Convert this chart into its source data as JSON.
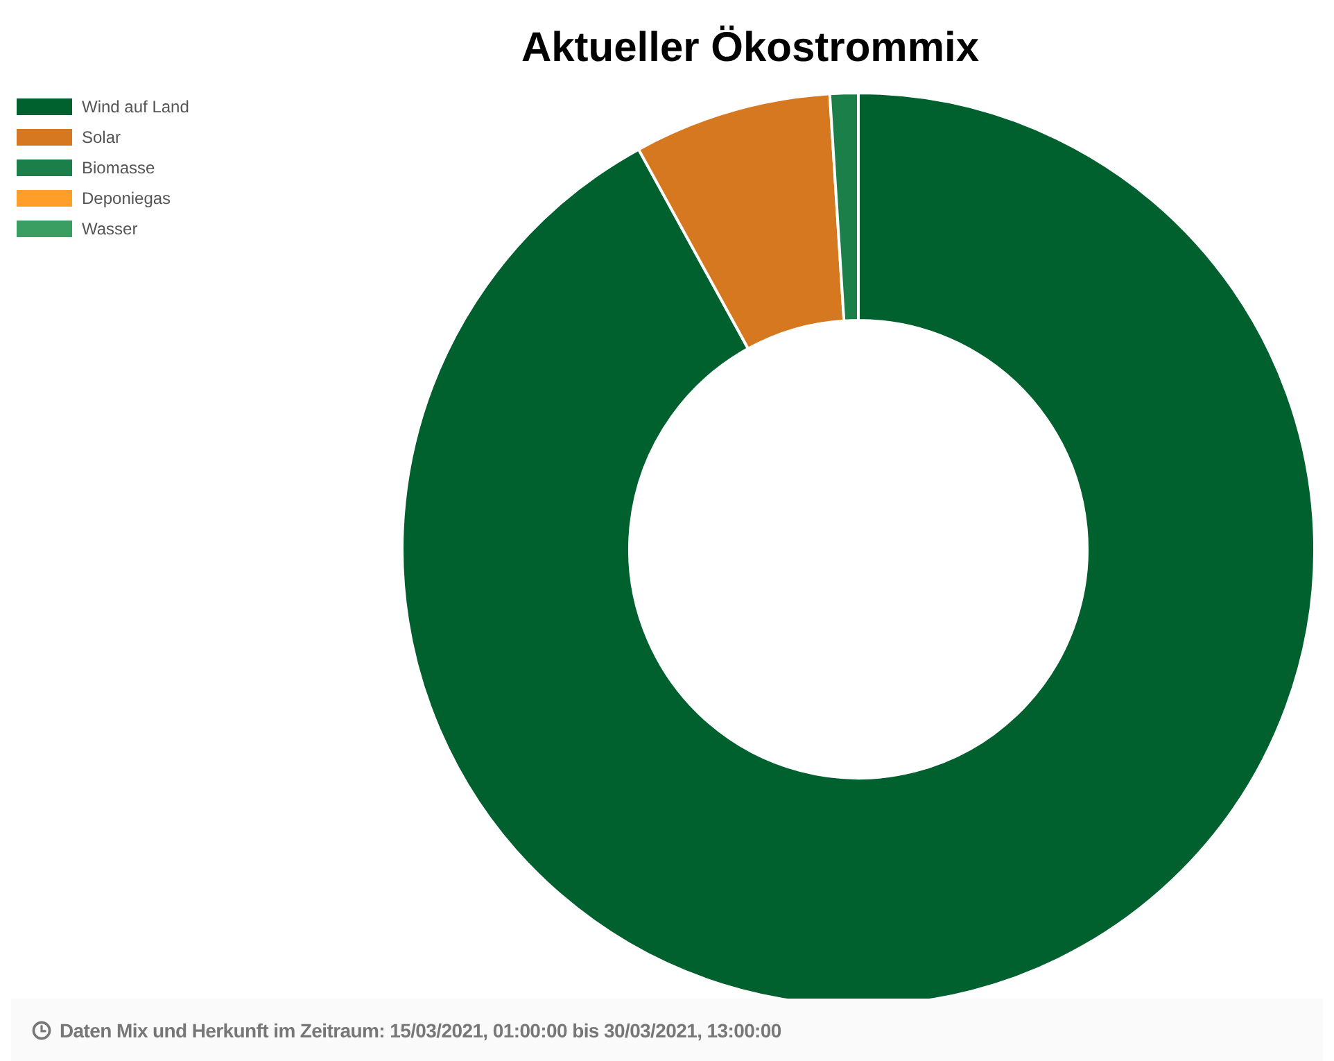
{
  "chart_data": {
    "type": "donut",
    "title": "Aktueller Ökostrommix",
    "categories": [
      "Wind auf Land",
      "Solar",
      "Biomasse",
      "Deponiegas",
      "Wasser"
    ],
    "values": [
      92,
      7,
      1,
      0,
      0
    ],
    "colors": [
      "#00612f",
      "#d5781f",
      "#1b7f49",
      "#ff9f2a",
      "#3a9e62"
    ],
    "legend": "top left",
    "annotations": [
      "Daten Mix und Herkunft im Zeitraum: 15/03/2021, 01:00:00 bis 30/03/2021, 13:00:00"
    ]
  }
}
